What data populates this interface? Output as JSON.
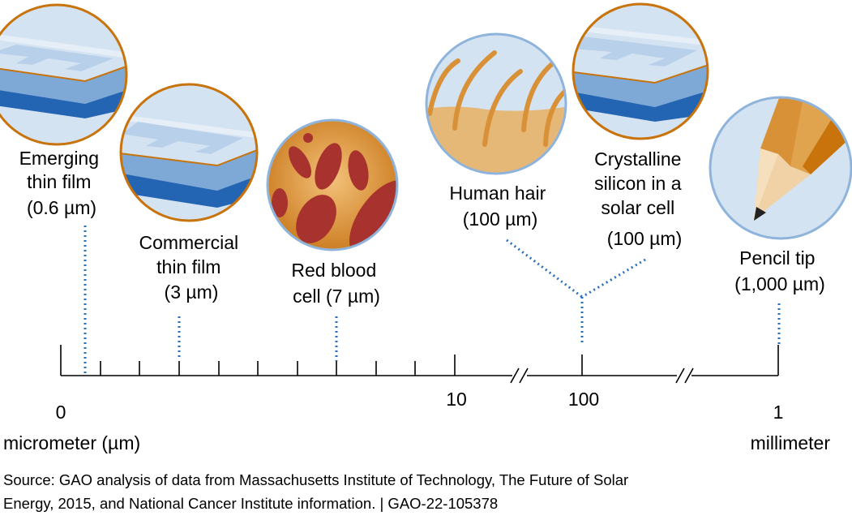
{
  "items": [
    {
      "name": "Emerging thin film",
      "lines": [
        "Emerging",
        "thin film",
        "(0.6 µm)"
      ]
    },
    {
      "name": "Commercial thin film",
      "lines": [
        "Commercial",
        "thin film",
        "(3 µm)"
      ]
    },
    {
      "name": "Red blood cell",
      "lines": [
        "Red blood",
        "cell (7 µm)"
      ]
    },
    {
      "name": "Human hair",
      "lines": [
        "Human hair",
        "(100 µm)"
      ]
    },
    {
      "name": "Crystalline silicon in a solar cell",
      "lines": [
        "Crystalline",
        "silicon in a",
        "solar cell",
        "(100 µm)"
      ]
    },
    {
      "name": "Pencil tip",
      "lines": [
        "Pencil tip",
        "(1,000 µm)"
      ]
    }
  ],
  "axis": {
    "tick_0": "0",
    "tick_10": "10",
    "tick_100": "100",
    "tick_1": "1",
    "left_unit": "micrometer (µm)",
    "right_unit": "millimeter"
  },
  "source": {
    "line1": "Source: GAO analysis of data from Massachusetts Institute of Technology, The Future of Solar",
    "line2": "Energy, 2015, and National Cancer Institute information.  |  GAO-22-105378"
  },
  "colors": {
    "orange": "#c8730c",
    "blue_ring": "#8fb4dc",
    "film_light": "#d4e3f2",
    "film_mid": "#7ea8d6",
    "film_dark": "#2465b3",
    "dotted": "#2a6ebb"
  }
}
